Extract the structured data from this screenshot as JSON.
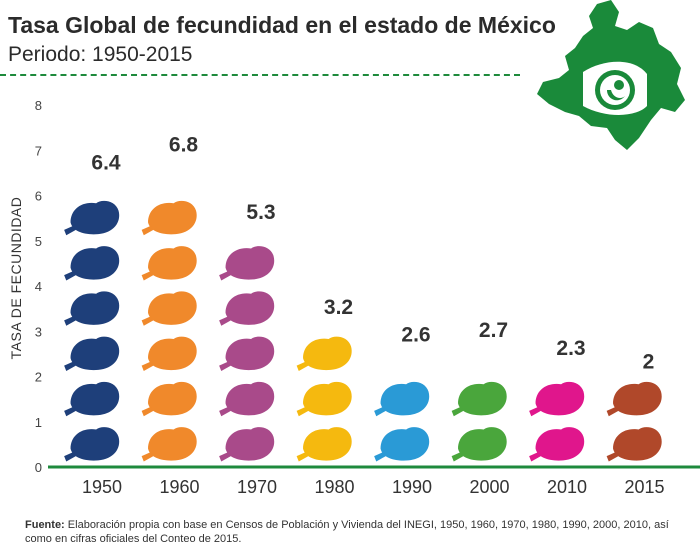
{
  "header": {
    "title": "Tasa Global de fecundidad en el estado de México",
    "subtitle": "Periodo: 1950-2015"
  },
  "footer": {
    "source_label": "Fuente:",
    "source_text": "Elaboración propia con base en Censos de Población y Vivienda del INEGI, 1950, 1960, 1970, 1980, 1990, 2000, 2010, así como en cifras oficiales del Conteo de 2015."
  },
  "map_icon": "estado-de-mexico-map-with-fetus-icon",
  "chart_data": {
    "type": "bar",
    "title": "Tasa Global de fecundidad en el estado de México",
    "subtitle": "Periodo: 1950-2015",
    "xlabel": "",
    "ylabel": "TASA DE FECUNDIDAD",
    "categories": [
      "1950",
      "1960",
      "1970",
      "1980",
      "1990",
      "2000",
      "2010",
      "2015"
    ],
    "values": [
      6.4,
      6.8,
      5.3,
      3.2,
      2.6,
      2.7,
      2.3,
      2
    ],
    "data_labels": [
      "6.4",
      "6.8",
      "5.3",
      "3.2",
      "2.6",
      "2.7",
      "2.3",
      "2"
    ],
    "colors": [
      "#1e3f7a",
      "#f0892b",
      "#a94a8a",
      "#f5b90f",
      "#2a9ad6",
      "#4aa63c",
      "#e0168c",
      "#b0482a"
    ],
    "axis_color": "#1e8a3c",
    "ylim": [
      0,
      8
    ],
    "yticks": [
      "0",
      "1",
      "2",
      "3",
      "4",
      "5",
      "6",
      "7",
      "8"
    ],
    "grid": false,
    "mark_icon": "fetus-icon"
  }
}
